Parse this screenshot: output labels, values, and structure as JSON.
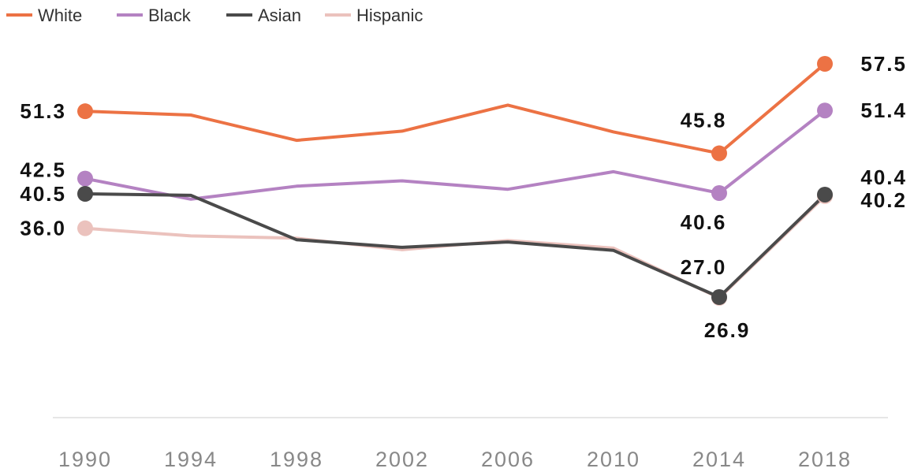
{
  "chart_data": {
    "type": "line",
    "x": [
      "1990",
      "1994",
      "1998",
      "2002",
      "2006",
      "2010",
      "2014",
      "2018"
    ],
    "ylim": [
      15,
      62
    ],
    "grid": false,
    "legend_position": "top-left",
    "series": [
      {
        "name": "White",
        "color": "#ec7244",
        "values": [
          51.3,
          50.8,
          47.5,
          48.7,
          52.1,
          48.6,
          45.8,
          57.5
        ]
      },
      {
        "name": "Black",
        "color": "#b482c2",
        "values": [
          42.5,
          39.8,
          41.5,
          42.2,
          41.1,
          43.4,
          40.6,
          51.4
        ]
      },
      {
        "name": "Asian",
        "color": "#4a4a4a",
        "values": [
          40.5,
          40.3,
          34.5,
          33.5,
          34.2,
          33.1,
          27.0,
          40.4
        ]
      },
      {
        "name": "Hispanic",
        "color": "#ebc2bd",
        "values": [
          36.0,
          35.0,
          34.7,
          33.2,
          34.4,
          33.4,
          26.9,
          40.2
        ]
      }
    ],
    "annotations": [
      {
        "series": 0,
        "index": 0,
        "label": "51.3",
        "pos": "left"
      },
      {
        "series": 1,
        "index": 0,
        "label": "42.5",
        "pos": "left-up"
      },
      {
        "series": 2,
        "index": 0,
        "label": "40.5",
        "pos": "left"
      },
      {
        "series": 3,
        "index": 0,
        "label": "36.0",
        "pos": "left"
      },
      {
        "series": 0,
        "index": 6,
        "label": "45.8",
        "pos": "above"
      },
      {
        "series": 1,
        "index": 6,
        "label": "40.6",
        "pos": "below"
      },
      {
        "series": 2,
        "index": 6,
        "label": "27.0",
        "pos": "above"
      },
      {
        "series": 3,
        "index": 6,
        "label": "26.9",
        "pos": "below"
      },
      {
        "series": 0,
        "index": 7,
        "label": "57.5",
        "pos": "right"
      },
      {
        "series": 1,
        "index": 7,
        "label": "51.4",
        "pos": "right"
      },
      {
        "series": 2,
        "index": 7,
        "label": "40.4",
        "pos": "right-up"
      },
      {
        "series": 3,
        "index": 7,
        "label": "40.2",
        "pos": "right-down"
      }
    ]
  }
}
